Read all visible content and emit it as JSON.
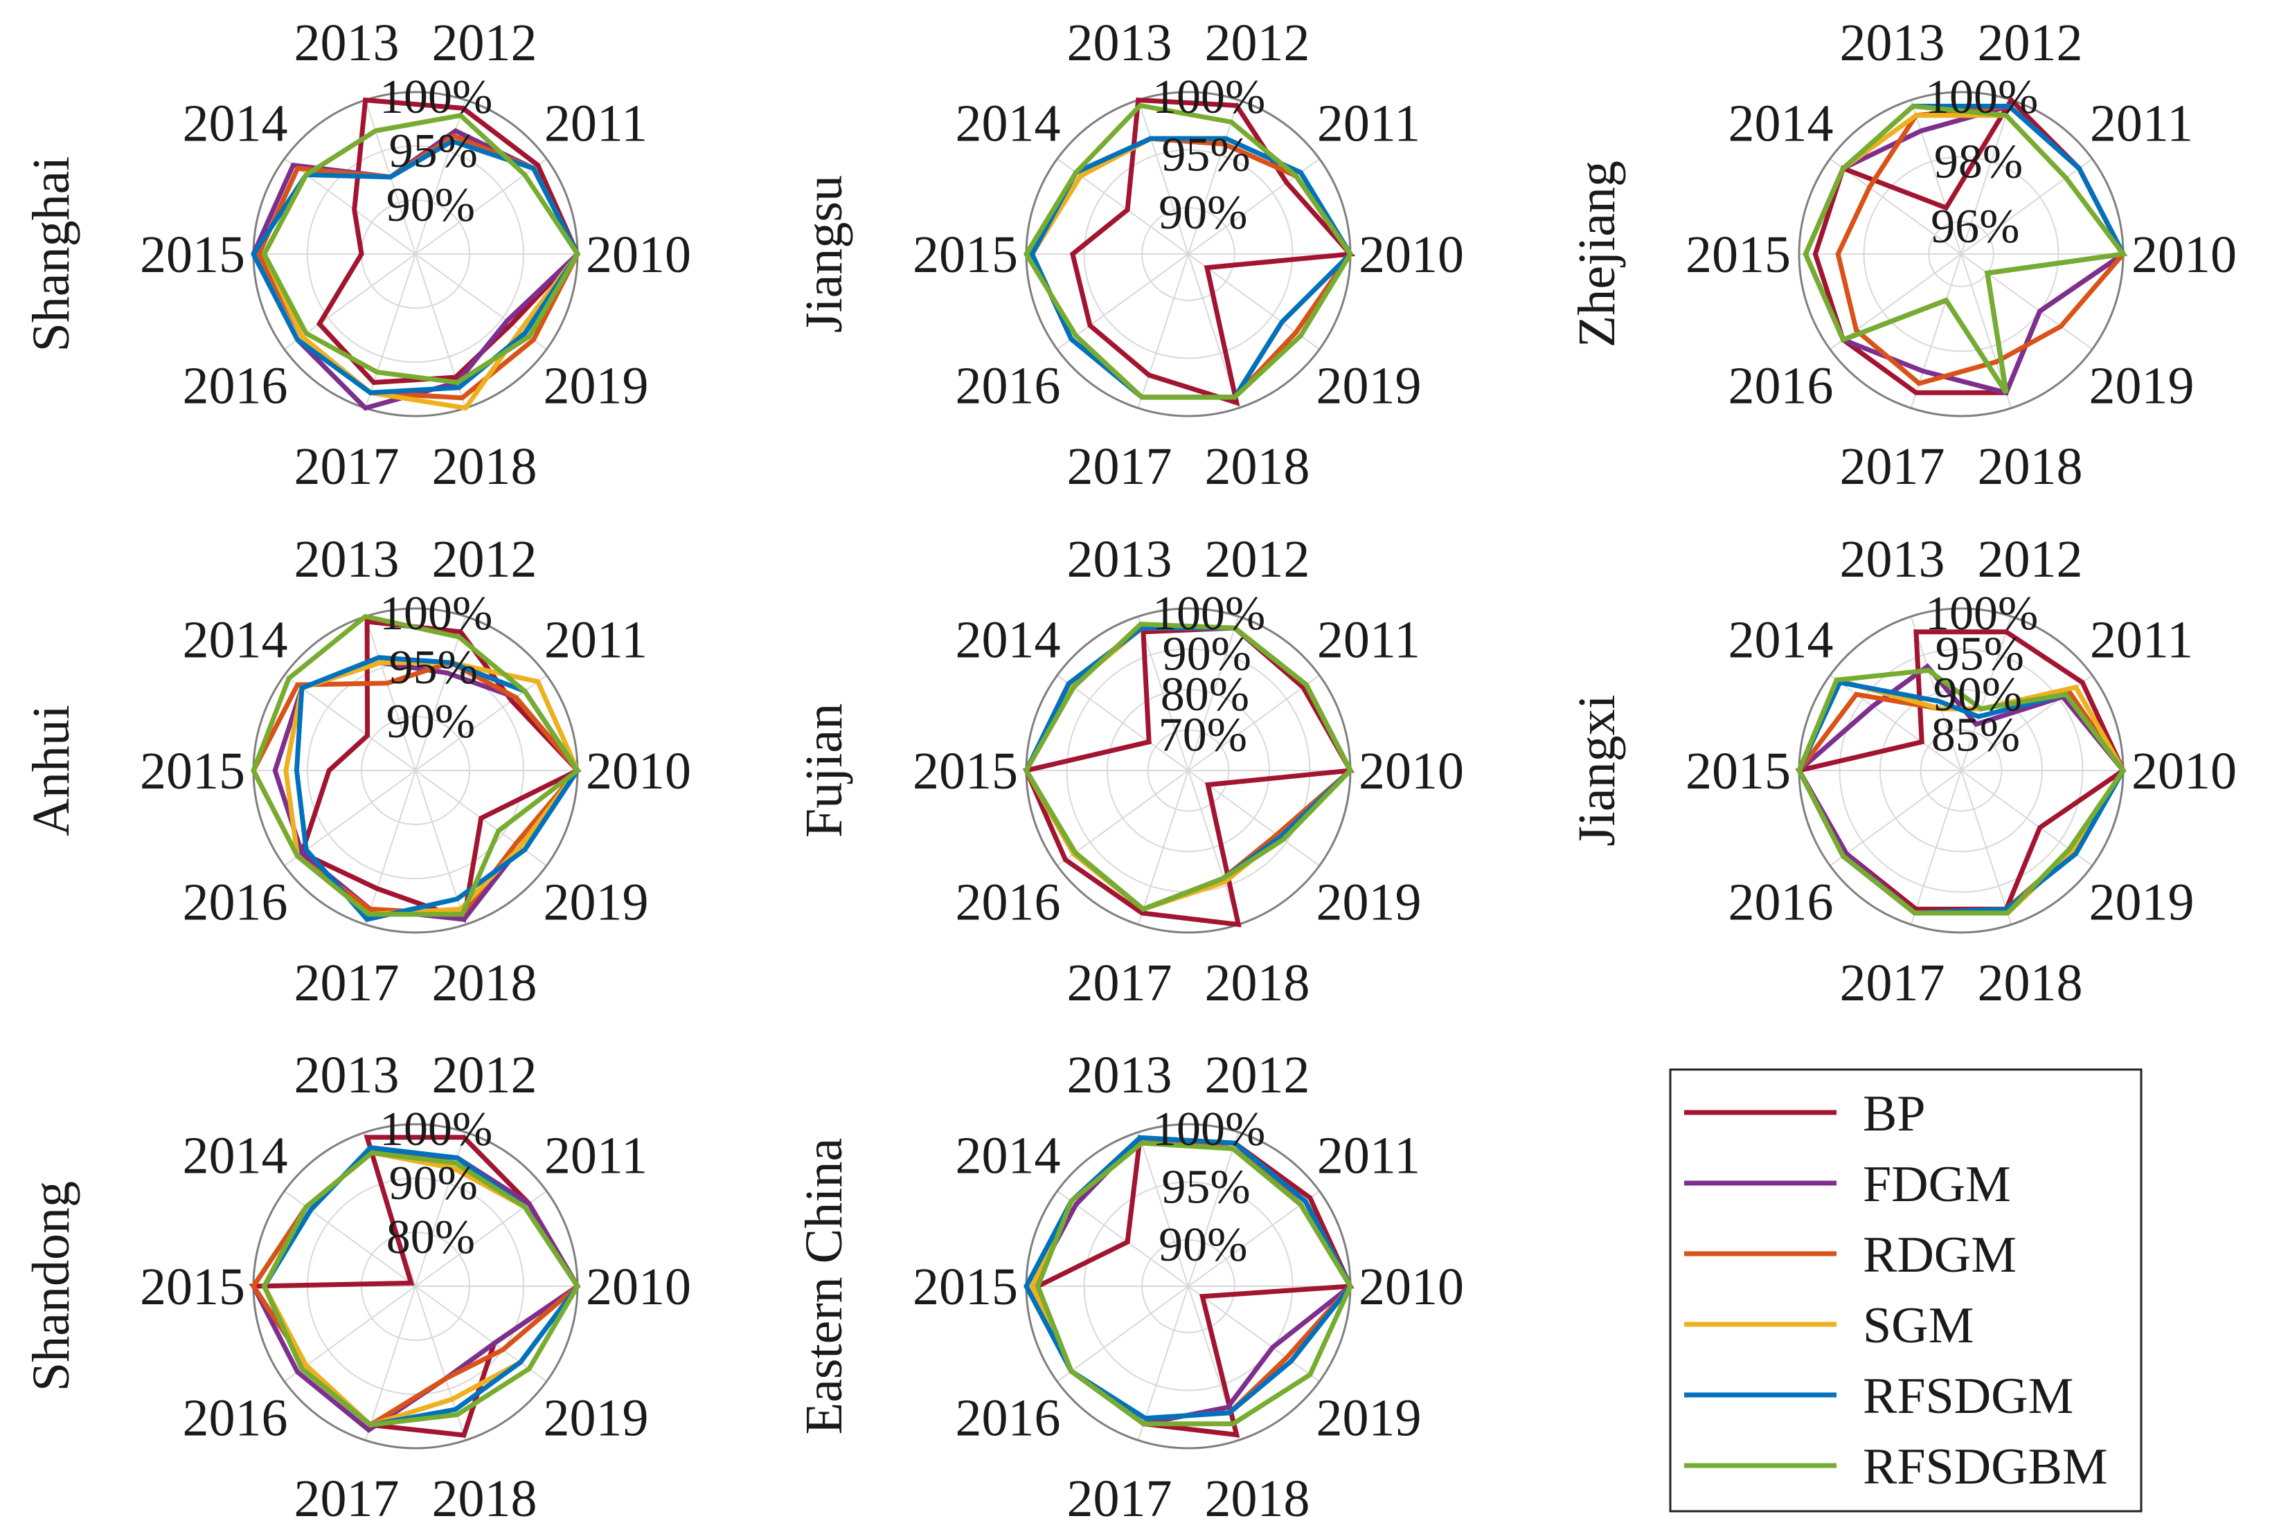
{
  "chart_data": {
    "type": "radar",
    "description_axes": [
      "2010",
      "2011",
      "2012",
      "2013",
      "2014",
      "2015",
      "2016",
      "2017",
      "2018",
      "2019"
    ],
    "legend": [
      {
        "name": "BP",
        "color": "#a2142f"
      },
      {
        "name": "FDGM",
        "color": "#7e2f8e"
      },
      {
        "name": "RDGM",
        "color": "#d95319"
      },
      {
        "name": "SGM",
        "color": "#edb120"
      },
      {
        "name": "RFSDGM",
        "color": "#0072bd"
      },
      {
        "name": "RFSDGBM",
        "color": "#77ac30"
      }
    ],
    "panels": [
      {
        "region": "Shanghai",
        "rings": [
          [
            "90%",
            90
          ],
          [
            "95%",
            95
          ],
          [
            "100%",
            100
          ]
        ],
        "rmin": 85,
        "rmax": 100,
        "series": [
          {
            "name": "BP",
            "values": [
              100,
              99.0,
              99.2,
              100,
              92.0,
              90.0,
              96.0,
              97.5,
              97.0,
              96.0
            ]
          },
          {
            "name": "FDGM",
            "values": [
              100,
              98.5,
              97.0,
              92.5,
              99.0,
              100,
              98.5,
              100,
              97.5,
              95.5
            ]
          },
          {
            "name": "RDGM",
            "values": [
              100,
              98.5,
              96.5,
              92.5,
              98.5,
              99.5,
              98.0,
              98.5,
              99.0,
              98.5
            ]
          },
          {
            "name": "SGM",
            "values": [
              100,
              98.5,
              96.0,
              92.5,
              97.5,
              99.0,
              98.0,
              98.5,
              100,
              97.0
            ]
          },
          {
            "name": "RFSDGM",
            "values": [
              100,
              98.5,
              96.0,
              92.5,
              97.5,
              100,
              98.5,
              98.5,
              98.0,
              97.5
            ]
          },
          {
            "name": "RFSDGBM",
            "values": [
              100,
              97.5,
              98.5,
              97.0,
              97.5,
              99.0,
              97.5,
              96.5,
              97.5,
              98.0
            ]
          }
        ]
      },
      {
        "region": "Jiangsu",
        "rings": [
          [
            "90%",
            90
          ],
          [
            "95%",
            95
          ],
          [
            "100%",
            100
          ]
        ],
        "rmin": 86,
        "rmax": 100,
        "series": [
          {
            "name": "BP",
            "values": [
              100,
              96.5,
              99.5,
              100,
              92.5,
              96.0,
              96.5,
              97.0,
              99.5,
              88.0
            ]
          },
          {
            "name": "FDGM",
            "values": [
              100,
              97.5,
              96.0,
              96.5,
              98.0,
              99.5,
              98.5,
              99.0,
              99.0,
              96.0
            ]
          },
          {
            "name": "RDGM",
            "values": [
              100,
              97.5,
              96.0,
              96.5,
              97.5,
              99.5,
              98.5,
              99.0,
              99.0,
              97.5
            ]
          },
          {
            "name": "SGM",
            "values": [
              100,
              98.0,
              96.5,
              96.5,
              97.5,
              99.5,
              98.5,
              99.0,
              99.0,
              96.0
            ]
          },
          {
            "name": "RFSDGM",
            "values": [
              100,
              98.0,
              96.5,
              96.5,
              98.0,
              99.5,
              98.5,
              99.0,
              99.0,
              96.0
            ]
          },
          {
            "name": "RFSDGBM",
            "values": [
              100,
              97.5,
              98.0,
              99.5,
              98.0,
              100,
              98.0,
              99.0,
              99.0,
              98.0
            ]
          }
        ]
      },
      {
        "region": "Zhejiang",
        "rings": [
          [
            "96%",
            96
          ],
          [
            "98%",
            98
          ],
          [
            "100%",
            100
          ]
        ],
        "rmin": 95,
        "rmax": 100,
        "series": [
          {
            "name": "BP",
            "values": [
              100,
              99.5,
              100,
              96.5,
              99.5,
              99.5,
              99.5,
              99.5,
              99.5,
              98.0
            ]
          },
          {
            "name": "FDGM",
            "values": [
              100,
              99.5,
              99.8,
              99.0,
              99.5,
              99.8,
              99.5,
              98.8,
              99.5,
              98.0
            ]
          },
          {
            "name": "RDGM",
            "values": [
              100,
              99.5,
              99.8,
              99.5,
              98.5,
              98.8,
              99.0,
              99.2,
              98.5,
              98.8
            ]
          },
          {
            "name": "SGM",
            "values": [
              100,
              99.0,
              99.5,
              99.5,
              99.5,
              99.8,
              99.5,
              96.5,
              99.5,
              96.0
            ]
          },
          {
            "name": "RFSDGM",
            "values": [
              100,
              99.5,
              99.8,
              99.8,
              99.5,
              99.8,
              99.5,
              96.5,
              99.5,
              96.0
            ]
          },
          {
            "name": "RFSDGBM",
            "values": [
              100,
              99.0,
              99.5,
              99.8,
              99.5,
              99.8,
              99.5,
              96.5,
              99.5,
              96.0
            ]
          }
        ]
      },
      {
        "region": "Anhui",
        "rings": [
          [
            "90%",
            90
          ],
          [
            "95%",
            95
          ],
          [
            "100%",
            100
          ]
        ],
        "rmin": 85,
        "rmax": 100,
        "series": [
          {
            "name": "BP",
            "values": [
              100,
              96.0,
              98.5,
              99.5,
              90.5,
              93.0,
              98.0,
              96.5,
              99.5,
              92.5
            ]
          },
          {
            "name": "FDGM",
            "values": [
              100,
              96.5,
              94.5,
              95.5,
              98.0,
              98.0,
              98.0,
              98.5,
              99.5,
              97.0
            ]
          },
          {
            "name": "RDGM",
            "values": [
              100,
              96.5,
              95.5,
              93.5,
              98.5,
              100,
              98.5,
              98.5,
              99.0,
              96.5
            ]
          },
          {
            "name": "SGM",
            "values": [
              100,
              99.0,
              95.5,
              95.5,
              98.0,
              97.0,
              98.5,
              99.0,
              98.5,
              97.0
            ]
          },
          {
            "name": "RFSDGM",
            "values": [
              100,
              97.5,
              95.5,
              96.0,
              98.0,
              96.0,
              97.5,
              99.5,
              97.5,
              97.5
            ]
          },
          {
            "name": "RFSDGBM",
            "values": [
              100,
              97.5,
              98.0,
              100,
              99.5,
              100,
              98.5,
              99.0,
              99.0,
              94.5
            ]
          }
        ]
      },
      {
        "region": "Fujian",
        "rings": [
          [
            "70%",
            70
          ],
          [
            "80%",
            80
          ],
          [
            "90%",
            90
          ],
          [
            "100%",
            100
          ]
        ],
        "rmin": 60,
        "rmax": 100,
        "series": [
          {
            "name": "BP",
            "values": [
              100,
              95.0,
              97.0,
              96.0,
              72.0,
              100,
              97.5,
              97.0,
              100,
              66.0
            ]
          },
          {
            "name": "FDGM",
            "values": [
              100,
              96.0,
              97.0,
              97.0,
              96.5,
              100,
              95.0,
              96.0,
              88.0,
              87.0
            ]
          },
          {
            "name": "RDGM",
            "values": [
              100,
              96.0,
              97.0,
              97.0,
              96.5,
              100,
              95.0,
              96.0,
              88.0,
              87.0
            ]
          },
          {
            "name": "SGM",
            "values": [
              100,
              96.0,
              97.0,
              97.0,
              95.5,
              100,
              95.0,
              96.0,
              89.0,
              88.0
            ]
          },
          {
            "name": "RFSDGM",
            "values": [
              100,
              96.0,
              97.0,
              97.0,
              96.5,
              100,
              94.5,
              96.0,
              88.0,
              88.0
            ]
          },
          {
            "name": "RFSDGBM",
            "values": [
              100,
              96.0,
              97.0,
              98.0,
              95.0,
              100,
              94.5,
              96.0,
              88.0,
              89.0
            ]
          }
        ]
      },
      {
        "region": "Jiangxi",
        "rings": [
          [
            "85%",
            85
          ],
          [
            "90%",
            90
          ],
          [
            "95%",
            95
          ],
          [
            "100%",
            100
          ]
        ],
        "rmin": 80,
        "rmax": 100,
        "series": [
          {
            "name": "BP",
            "values": [
              100,
              98.5,
              98.0,
              98.0,
              86.0,
              100,
              97.5,
              98.0,
              98.0,
              92.0
            ]
          },
          {
            "name": "FDGM",
            "values": [
              100,
              95.5,
              86.0,
              93.5,
              93.5,
              100,
              97.5,
              98.5,
              98.5,
              97.0
            ]
          },
          {
            "name": "RDGM",
            "values": [
              100,
              96.5,
              88.0,
              88.0,
              96.0,
              100,
              98.0,
              98.5,
              98.0,
              97.0
            ]
          },
          {
            "name": "SGM",
            "values": [
              100,
              97.5,
              88.0,
              88.0,
              99.0,
              100,
              98.0,
              98.5,
              98.5,
              97.0
            ]
          },
          {
            "name": "RFSDGM",
            "values": [
              100,
              96.0,
              87.0,
              89.0,
              98.5,
              100,
              98.0,
              98.5,
              98.0,
              97.5
            ]
          },
          {
            "name": "RFSDGBM",
            "values": [
              100,
              96.0,
              88.0,
              93.0,
              99.0,
              100,
              98.0,
              98.5,
              98.5,
              96.5
            ]
          }
        ]
      },
      {
        "region": "Shandong",
        "rings": [
          [
            "80%",
            80
          ],
          [
            "90%",
            90
          ],
          [
            "100%",
            100
          ]
        ],
        "rmin": 70,
        "rmax": 100,
        "series": [
          {
            "name": "BP",
            "values": [
              100,
              96.0,
              99.0,
              99.0,
              71.0,
              100,
              95.0,
              97.0,
              99.0,
              88.0
            ]
          },
          {
            "name": "FDGM",
            "values": [
              100,
              96.0,
              95.0,
              96.0,
              95.0,
              100,
              97.0,
              98.0,
              88.0,
              88.0
            ]
          },
          {
            "name": "RDGM",
            "values": [
              100,
              95.0,
              93.0,
              96.0,
              95.0,
              100,
              95.0,
              97.0,
              88.0,
              90.0
            ]
          },
          {
            "name": "SGM",
            "values": [
              100,
              95.0,
              93.0,
              96.0,
              95.0,
              98.0,
              95.0,
              97.0,
              92.0,
              94.0
            ]
          },
          {
            "name": "RFSDGM",
            "values": [
              100,
              95.0,
              95.0,
              97.0,
              94.0,
              98.0,
              96.0,
              97.0,
              94.0,
              94.0
            ]
          },
          {
            "name": "RFSDGBM",
            "values": [
              100,
              95.0,
              94.0,
              96.0,
              95.0,
              98.0,
              96.0,
              97.0,
              95.0,
              96.0
            ]
          }
        ]
      },
      {
        "region": "Eastern China",
        "rings": [
          [
            "90%",
            90
          ],
          [
            "95%",
            95
          ],
          [
            "100%",
            100
          ]
        ],
        "rmin": 86,
        "rmax": 100,
        "series": [
          {
            "name": "BP",
            "values": [
              100,
              99.0,
              99.0,
              99.5,
              92.5,
              99.0,
              98.5,
              98.5,
              99.5,
              87.5
            ]
          },
          {
            "name": "FDGM",
            "values": [
              100,
              98.0,
              98.5,
              99.5,
              98.0,
              99.5,
              98.5,
              98.5,
              97.0,
              95.0
            ]
          },
          {
            "name": "RDGM",
            "values": [
              100,
              98.5,
              98.5,
              99.5,
              98.5,
              99.5,
              98.5,
              98.0,
              97.5,
              96.5
            ]
          },
          {
            "name": "SGM",
            "values": [
              100,
              98.5,
              99.0,
              99.5,
              98.5,
              99.5,
              98.5,
              98.0,
              97.5,
              97.0
            ]
          },
          {
            "name": "RFSDGM",
            "values": [
              100,
              98.5,
              99.0,
              99.5,
              98.5,
              100,
              98.5,
              98.0,
              97.5,
              97.0
            ]
          },
          {
            "name": "RFSDGBM",
            "values": [
              100,
              98.0,
              98.5,
              99.0,
              98.5,
              99.0,
              98.5,
              98.5,
              98.5,
              99.0
            ]
          }
        ]
      }
    ]
  }
}
